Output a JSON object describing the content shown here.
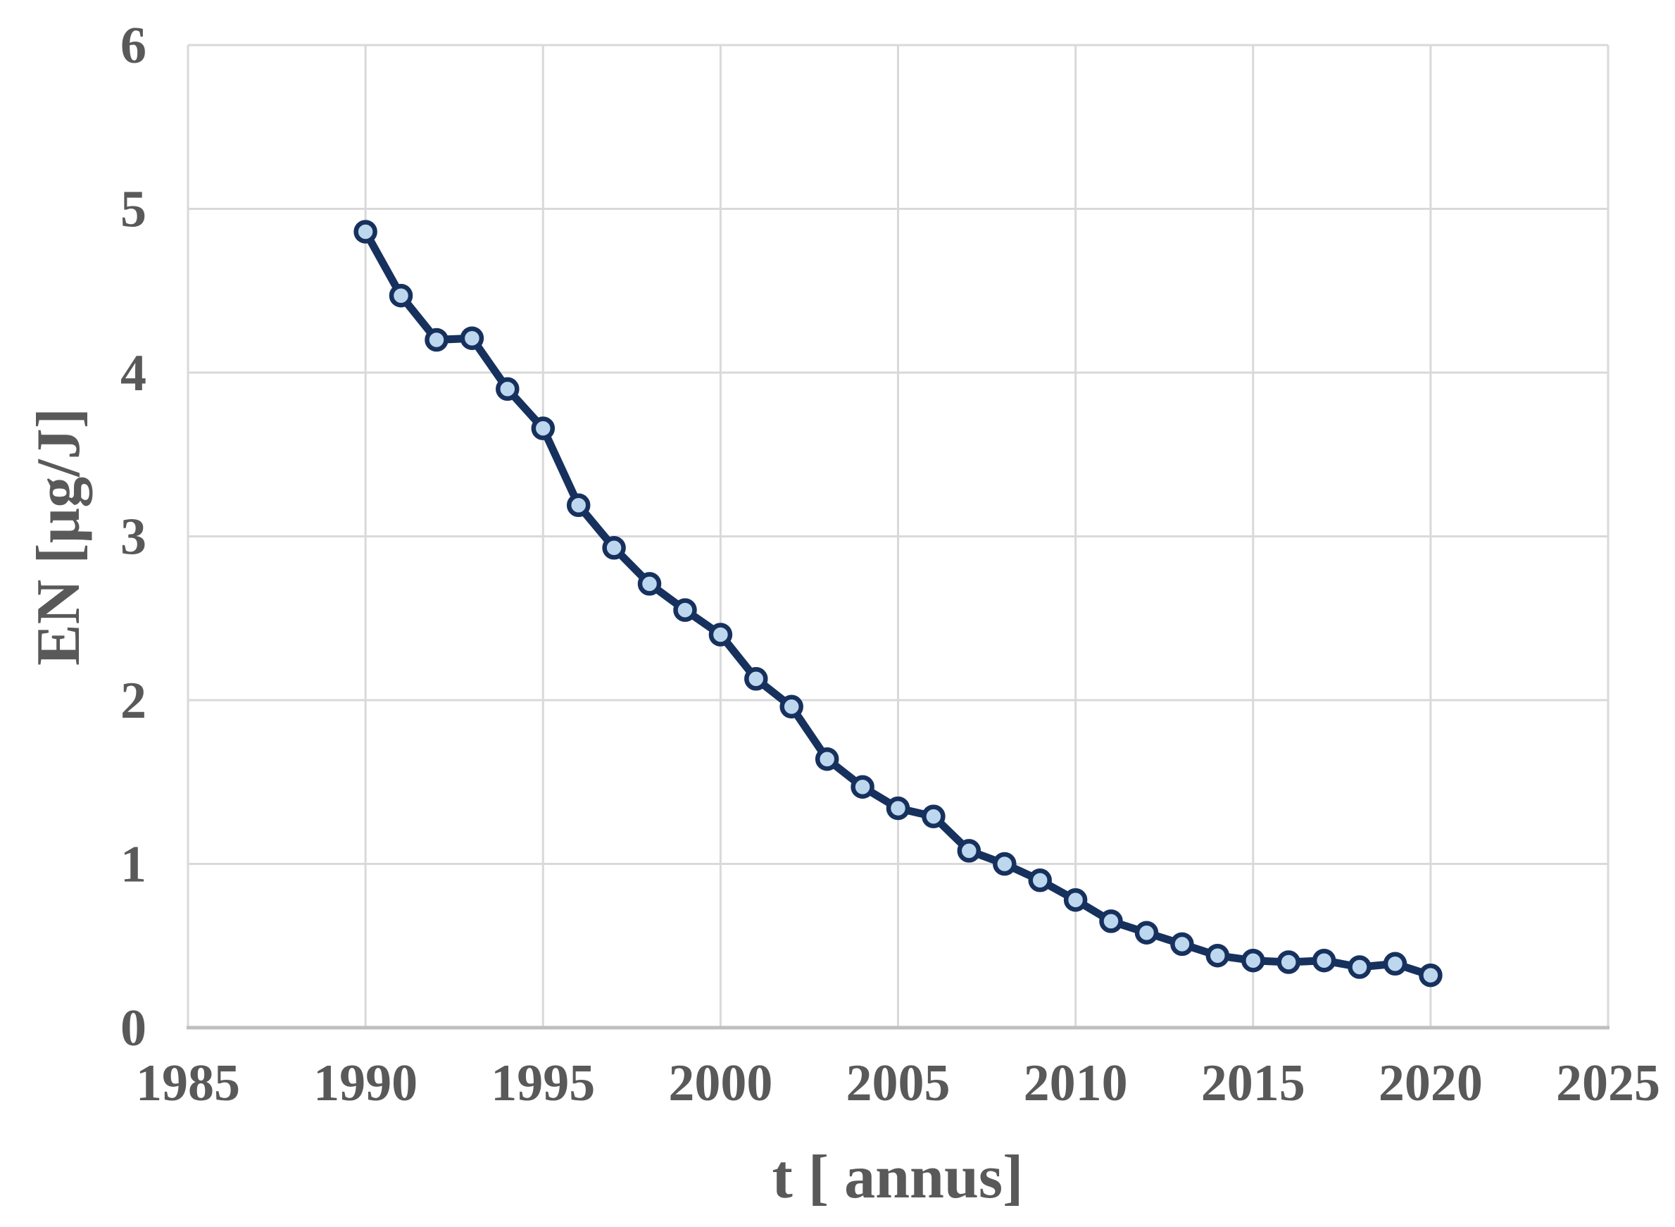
{
  "chart_data": {
    "type": "line",
    "title": "",
    "xlabel": "t [ annus]",
    "ylabel": "EN [µg/J]",
    "x": [
      1990,
      1991,
      1992,
      1993,
      1994,
      1995,
      1996,
      1997,
      1998,
      1999,
      2000,
      2001,
      2002,
      2003,
      2004,
      2005,
      2006,
      2007,
      2008,
      2009,
      2010,
      2011,
      2012,
      2013,
      2014,
      2015,
      2016,
      2017,
      2018,
      2019,
      2020
    ],
    "values": [
      4.86,
      4.47,
      4.2,
      4.21,
      3.9,
      3.66,
      3.19,
      2.93,
      2.71,
      2.55,
      2.4,
      2.13,
      1.96,
      1.64,
      1.47,
      1.34,
      1.29,
      1.08,
      1.0,
      0.9,
      0.78,
      0.65,
      0.58,
      0.51,
      0.44,
      0.41,
      0.4,
      0.41,
      0.37,
      0.39,
      0.32
    ],
    "xlim": [
      1985,
      2025
    ],
    "ylim": [
      0,
      6
    ],
    "xticks": [
      1985,
      1990,
      1995,
      2000,
      2005,
      2010,
      2015,
      2020,
      2025
    ],
    "yticks": [
      0,
      1,
      2,
      3,
      4,
      5,
      6
    ],
    "grid": true,
    "legend": false,
    "marker": "circle",
    "colors": {
      "line": "#17315E",
      "marker_fill": "#BDD7EE",
      "marker_border": "#17315E",
      "gridline": "#D9D9D9",
      "axis_line": "#BFBFBF",
      "text": "#595959"
    }
  }
}
